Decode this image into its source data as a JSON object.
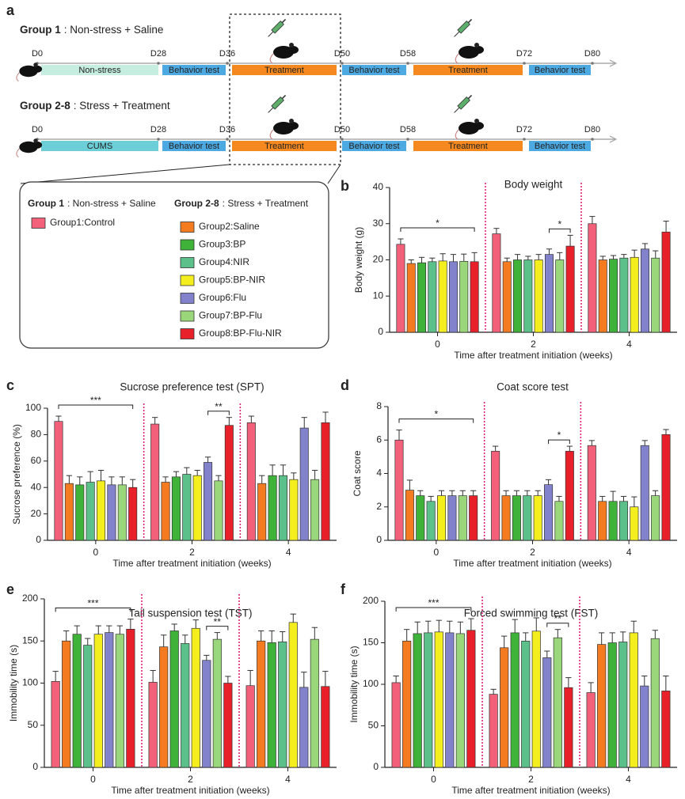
{
  "panel_labels": [
    "a",
    "b",
    "c",
    "d",
    "e",
    "f"
  ],
  "timeline": {
    "rows": [
      {
        "group": "Group 1",
        "desc": ": Non-stress + Saline",
        "days": [
          "D0",
          "D28",
          "D36",
          "D50",
          "D58",
          "D72",
          "D80"
        ],
        "stages": [
          "Non-stress",
          "Behavior test",
          "Treatment",
          "Behavior test",
          "Treatment",
          "Behavior test"
        ]
      },
      {
        "group": "Group 2-8",
        "desc": ": Stress + Treatment",
        "days": [
          "D0",
          "D28",
          "D36",
          "D50",
          "D58",
          "D72",
          "D80"
        ],
        "stages": [
          "CUMS",
          "Behavior test",
          "Treatment",
          "Behavior test",
          "Treatment",
          "Behavior test"
        ]
      }
    ]
  },
  "legend": {
    "titles": [
      {
        "group": "Group 1",
        "desc": ": Non-stress + Saline"
      },
      {
        "group": "Group 2-8",
        "desc": ": Stress + Treatment"
      }
    ],
    "groups": [
      {
        "name": "Group1:Control",
        "color": "#f2607a"
      },
      {
        "name": "Group2:Saline",
        "color": "#f47b20"
      },
      {
        "name": "Group3:BP",
        "color": "#3fb23a"
      },
      {
        "name": "Group4:NIR",
        "color": "#5cc08a"
      },
      {
        "name": "Group5:BP-NIR",
        "color": "#f5ee1e"
      },
      {
        "name": "Group6:Flu",
        "color": "#8282cc"
      },
      {
        "name": "Group7:BP-Flu",
        "color": "#9ad77a"
      },
      {
        "name": "Group8:BP-Flu-NIR",
        "color": "#e8202a"
      }
    ]
  },
  "chart_data": [
    {
      "type": "bar",
      "title": "Body weight",
      "ylabel": "Body weight (g)",
      "xlabel": "Time after treatment initiation (weeks)",
      "categories": [
        "0",
        "2",
        "4"
      ],
      "ylim": [
        0,
        40
      ],
      "yticks": [
        0,
        10,
        20,
        30,
        40
      ],
      "series": [
        {
          "values": [
            24.3,
            27.2,
            30
          ],
          "errors": [
            1.5,
            1.5,
            2
          ]
        },
        {
          "values": [
            19,
            19.5,
            20
          ],
          "errors": [
            1,
            1,
            1
          ]
        },
        {
          "values": [
            19.2,
            20,
            20.2
          ],
          "errors": [
            1.5,
            1.5,
            1
          ]
        },
        {
          "values": [
            19.5,
            20,
            20.5
          ],
          "errors": [
            1,
            1,
            1
          ]
        },
        {
          "values": [
            19.7,
            20,
            20.7
          ],
          "errors": [
            2,
            1.5,
            2
          ]
        },
        {
          "values": [
            19.5,
            21.5,
            23
          ],
          "errors": [
            2,
            1.5,
            1.5
          ]
        },
        {
          "values": [
            19.6,
            20,
            20.5
          ],
          "errors": [
            2,
            2,
            2
          ]
        },
        {
          "values": [
            19.5,
            23.8,
            27.7
          ],
          "errors": [
            2.5,
            3,
            3
          ]
        }
      ],
      "annotations": [
        "*",
        "*"
      ]
    },
    {
      "type": "bar",
      "title": "Sucrose preference test (SPT)",
      "ylabel": "Sucrose preference (%)",
      "xlabel": "Time after treatment initiation (weeks)",
      "categories": [
        "0",
        "2",
        "4"
      ],
      "ylim": [
        0,
        100
      ],
      "yticks": [
        0,
        20,
        40,
        60,
        80,
        100
      ],
      "series": [
        {
          "values": [
            90,
            88,
            89
          ],
          "errors": [
            4,
            5,
            5
          ]
        },
        {
          "values": [
            43,
            44,
            43
          ],
          "errors": [
            6,
            4,
            6
          ]
        },
        {
          "values": [
            42,
            48,
            49
          ],
          "errors": [
            6,
            4,
            8
          ]
        },
        {
          "values": [
            44,
            50,
            49
          ],
          "errors": [
            8,
            5,
            8
          ]
        },
        {
          "values": [
            45,
            49,
            46
          ],
          "errors": [
            8,
            4,
            5
          ]
        },
        {
          "values": [
            42,
            59,
            85
          ],
          "errors": [
            6,
            4,
            8
          ]
        },
        {
          "values": [
            42,
            45,
            46
          ],
          "errors": [
            6,
            4,
            7
          ]
        },
        {
          "values": [
            40,
            87,
            89
          ],
          "errors": [
            6,
            6,
            8
          ]
        }
      ],
      "annotations": [
        "***",
        "**"
      ]
    },
    {
      "type": "bar",
      "title": "Coat score test",
      "ylabel": "Coat score",
      "xlabel": "Time after treatment initiation (weeks)",
      "categories": [
        "0",
        "2",
        "4"
      ],
      "ylim": [
        0,
        8
      ],
      "yticks": [
        0,
        2,
        4,
        6,
        8
      ],
      "series": [
        {
          "values": [
            6,
            5.33,
            5.67
          ],
          "errors": [
            0.6,
            0.3,
            0.3
          ]
        },
        {
          "values": [
            3,
            2.67,
            2.33
          ],
          "errors": [
            0.6,
            0.3,
            0.3
          ]
        },
        {
          "values": [
            2.67,
            2.67,
            2.33
          ],
          "errors": [
            0.3,
            0.3,
            0.6
          ]
        },
        {
          "values": [
            2.33,
            2.67,
            2.33
          ],
          "errors": [
            0.3,
            0.3,
            0.3
          ]
        },
        {
          "values": [
            2.67,
            2.67,
            2
          ],
          "errors": [
            0.3,
            0.3,
            0.6
          ]
        },
        {
          "values": [
            2.67,
            3.33,
            5.67
          ],
          "errors": [
            0.3,
            0.3,
            0.3
          ]
        },
        {
          "values": [
            2.67,
            2.33,
            2.67
          ],
          "errors": [
            0.3,
            0.3,
            0.3
          ]
        },
        {
          "values": [
            2.67,
            5.33,
            6.33
          ],
          "errors": [
            0.3,
            0.3,
            0.3
          ]
        }
      ],
      "annotations": [
        "*",
        "*"
      ]
    },
    {
      "type": "bar",
      "title": "Tail suspension test (TST)",
      "ylabel": "Immobility time (s)",
      "xlabel": "Time after treatment initiation (weeks)",
      "categories": [
        "0",
        "2",
        "4"
      ],
      "ylim": [
        0,
        200
      ],
      "yticks": [
        0,
        50,
        100,
        150,
        200
      ],
      "series": [
        {
          "values": [
            102,
            101,
            97
          ],
          "errors": [
            12,
            14,
            18
          ]
        },
        {
          "values": [
            150,
            143,
            150
          ],
          "errors": [
            12,
            14,
            12
          ]
        },
        {
          "values": [
            158,
            162,
            148
          ],
          "errors": [
            10,
            8,
            14
          ]
        },
        {
          "values": [
            145,
            147,
            149
          ],
          "errors": [
            8,
            10,
            12
          ]
        },
        {
          "values": [
            158,
            165,
            172
          ],
          "errors": [
            10,
            10,
            10
          ]
        },
        {
          "values": [
            160,
            127,
            95
          ],
          "errors": [
            8,
            6,
            18
          ]
        },
        {
          "values": [
            158,
            152,
            152
          ],
          "errors": [
            10,
            8,
            14
          ]
        },
        {
          "values": [
            164,
            100,
            96
          ],
          "errors": [
            12,
            8,
            18
          ]
        }
      ],
      "annotations": [
        "***",
        "**"
      ]
    },
    {
      "type": "bar",
      "title": "Forced swimming test (FST)",
      "ylabel": "Immobility time (s)",
      "xlabel": "Time after treatment initiation (weeks)",
      "categories": [
        "0",
        "2",
        "4"
      ],
      "ylim": [
        0,
        200
      ],
      "yticks": [
        0,
        50,
        100,
        150,
        200
      ],
      "series": [
        {
          "values": [
            102,
            88,
            90
          ],
          "errors": [
            8,
            6,
            12
          ]
        },
        {
          "values": [
            152,
            144,
            148
          ],
          "errors": [
            14,
            14,
            14
          ]
        },
        {
          "values": [
            161,
            162,
            150
          ],
          "errors": [
            14,
            16,
            12
          ]
        },
        {
          "values": [
            162,
            152,
            151
          ],
          "errors": [
            14,
            10,
            12
          ]
        },
        {
          "values": [
            163,
            164,
            162
          ],
          "errors": [
            14,
            16,
            14
          ]
        },
        {
          "values": [
            162,
            132,
            98
          ],
          "errors": [
            14,
            8,
            12
          ]
        },
        {
          "values": [
            161,
            156,
            155
          ],
          "errors": [
            14,
            10,
            10
          ]
        },
        {
          "values": [
            165,
            96,
            92
          ],
          "errors": [
            14,
            12,
            18
          ]
        }
      ],
      "annotations": [
        "***",
        "**"
      ]
    }
  ]
}
